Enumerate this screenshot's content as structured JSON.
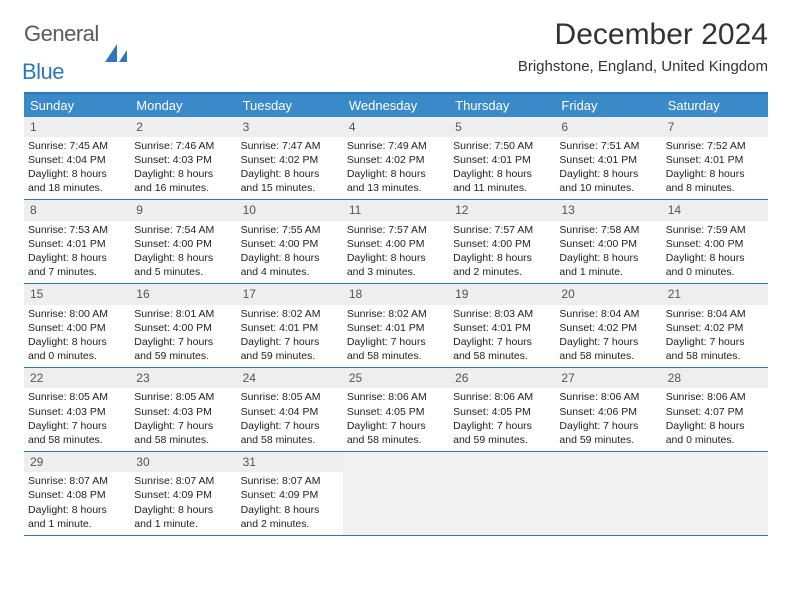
{
  "logo": {
    "text1": "General",
    "text2": "Blue"
  },
  "title": "December 2024",
  "location": "Brighstone, England, United Kingdom",
  "colors": {
    "header_bg": "#3a89c9",
    "border": "#2f78bd",
    "daynum_bg": "#eeeeee",
    "empty_bg": "#f2f2f2"
  },
  "day_headers": [
    "Sunday",
    "Monday",
    "Tuesday",
    "Wednesday",
    "Thursday",
    "Friday",
    "Saturday"
  ],
  "weeks": [
    [
      {
        "n": "1",
        "sr": "7:45 AM",
        "ss": "4:04 PM",
        "dl": "8 hours and 18 minutes."
      },
      {
        "n": "2",
        "sr": "7:46 AM",
        "ss": "4:03 PM",
        "dl": "8 hours and 16 minutes."
      },
      {
        "n": "3",
        "sr": "7:47 AM",
        "ss": "4:02 PM",
        "dl": "8 hours and 15 minutes."
      },
      {
        "n": "4",
        "sr": "7:49 AM",
        "ss": "4:02 PM",
        "dl": "8 hours and 13 minutes."
      },
      {
        "n": "5",
        "sr": "7:50 AM",
        "ss": "4:01 PM",
        "dl": "8 hours and 11 minutes."
      },
      {
        "n": "6",
        "sr": "7:51 AM",
        "ss": "4:01 PM",
        "dl": "8 hours and 10 minutes."
      },
      {
        "n": "7",
        "sr": "7:52 AM",
        "ss": "4:01 PM",
        "dl": "8 hours and 8 minutes."
      }
    ],
    [
      {
        "n": "8",
        "sr": "7:53 AM",
        "ss": "4:01 PM",
        "dl": "8 hours and 7 minutes."
      },
      {
        "n": "9",
        "sr": "7:54 AM",
        "ss": "4:00 PM",
        "dl": "8 hours and 5 minutes."
      },
      {
        "n": "10",
        "sr": "7:55 AM",
        "ss": "4:00 PM",
        "dl": "8 hours and 4 minutes."
      },
      {
        "n": "11",
        "sr": "7:57 AM",
        "ss": "4:00 PM",
        "dl": "8 hours and 3 minutes."
      },
      {
        "n": "12",
        "sr": "7:57 AM",
        "ss": "4:00 PM",
        "dl": "8 hours and 2 minutes."
      },
      {
        "n": "13",
        "sr": "7:58 AM",
        "ss": "4:00 PM",
        "dl": "8 hours and 1 minute."
      },
      {
        "n": "14",
        "sr": "7:59 AM",
        "ss": "4:00 PM",
        "dl": "8 hours and 0 minutes."
      }
    ],
    [
      {
        "n": "15",
        "sr": "8:00 AM",
        "ss": "4:00 PM",
        "dl": "8 hours and 0 minutes."
      },
      {
        "n": "16",
        "sr": "8:01 AM",
        "ss": "4:00 PM",
        "dl": "7 hours and 59 minutes."
      },
      {
        "n": "17",
        "sr": "8:02 AM",
        "ss": "4:01 PM",
        "dl": "7 hours and 59 minutes."
      },
      {
        "n": "18",
        "sr": "8:02 AM",
        "ss": "4:01 PM",
        "dl": "7 hours and 58 minutes."
      },
      {
        "n": "19",
        "sr": "8:03 AM",
        "ss": "4:01 PM",
        "dl": "7 hours and 58 minutes."
      },
      {
        "n": "20",
        "sr": "8:04 AM",
        "ss": "4:02 PM",
        "dl": "7 hours and 58 minutes."
      },
      {
        "n": "21",
        "sr": "8:04 AM",
        "ss": "4:02 PM",
        "dl": "7 hours and 58 minutes."
      }
    ],
    [
      {
        "n": "22",
        "sr": "8:05 AM",
        "ss": "4:03 PM",
        "dl": "7 hours and 58 minutes."
      },
      {
        "n": "23",
        "sr": "8:05 AM",
        "ss": "4:03 PM",
        "dl": "7 hours and 58 minutes."
      },
      {
        "n": "24",
        "sr": "8:05 AM",
        "ss": "4:04 PM",
        "dl": "7 hours and 58 minutes."
      },
      {
        "n": "25",
        "sr": "8:06 AM",
        "ss": "4:05 PM",
        "dl": "7 hours and 58 minutes."
      },
      {
        "n": "26",
        "sr": "8:06 AM",
        "ss": "4:05 PM",
        "dl": "7 hours and 59 minutes."
      },
      {
        "n": "27",
        "sr": "8:06 AM",
        "ss": "4:06 PM",
        "dl": "7 hours and 59 minutes."
      },
      {
        "n": "28",
        "sr": "8:06 AM",
        "ss": "4:07 PM",
        "dl": "8 hours and 0 minutes."
      }
    ],
    [
      {
        "n": "29",
        "sr": "8:07 AM",
        "ss": "4:08 PM",
        "dl": "8 hours and 1 minute."
      },
      {
        "n": "30",
        "sr": "8:07 AM",
        "ss": "4:09 PM",
        "dl": "8 hours and 1 minute."
      },
      {
        "n": "31",
        "sr": "8:07 AM",
        "ss": "4:09 PM",
        "dl": "8 hours and 2 minutes."
      },
      null,
      null,
      null,
      null
    ]
  ],
  "labels": {
    "sunrise": "Sunrise:",
    "sunset": "Sunset:",
    "daylight": "Daylight:"
  }
}
